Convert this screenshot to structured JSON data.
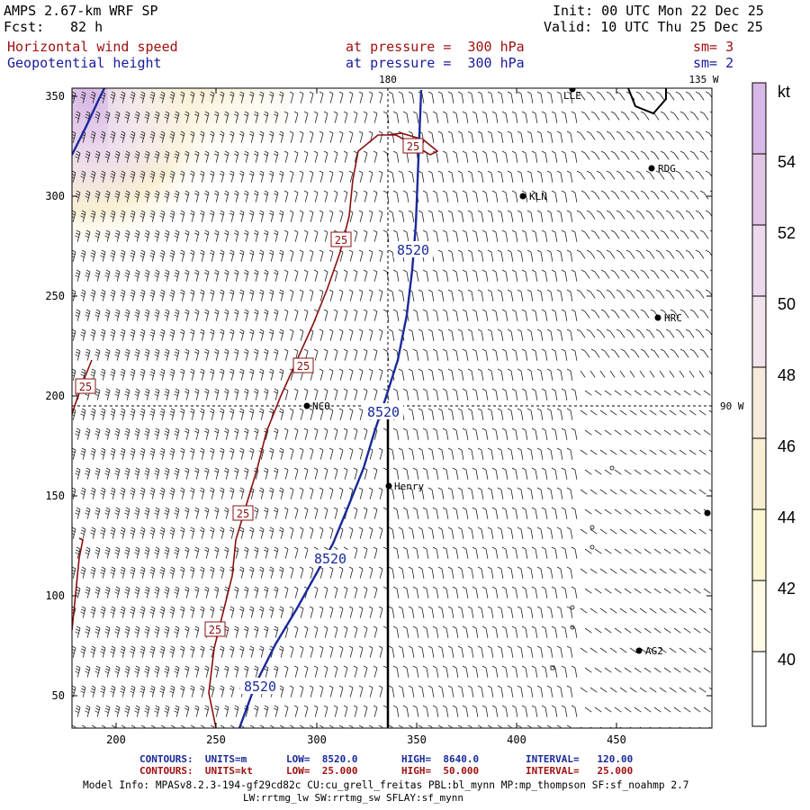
{
  "header": {
    "model": "AMPS 2.67-km WRF SP",
    "fcst_label": "Fcst:",
    "fcst_value": "82 h",
    "init": "Init: 00 UTC Mon 22 Dec 25",
    "valid": "Valid: 10 UTC Thu 25 Dec 25",
    "field1_name": "Horizontal wind speed",
    "field1_level": "at pressure =  300 hPa",
    "field1_sm": "sm= 3",
    "field2_name": "Geopotential height",
    "field2_level": "at pressure =  300 hPa",
    "field2_sm": "sm= 2"
  },
  "map": {
    "lon_top_1": "180",
    "lon_top_2": "135 W",
    "lon_right": "90 W",
    "stations": [
      {
        "name": "LLE",
        "label": "LLE"
      },
      {
        "name": "RDG",
        "label": "RDG"
      },
      {
        "name": "KLN",
        "label": "KLN"
      },
      {
        "name": "HRC",
        "label": "HRC"
      },
      {
        "name": "NCO",
        "label": "NCO"
      },
      {
        "name": "Henry",
        "label": "Henry"
      },
      {
        "name": "AG2",
        "label": "AG2"
      }
    ],
    "height_contour_label": "8520",
    "speed_contour_label": "25",
    "x_ticks": [
      "200",
      "250",
      "300",
      "350",
      "400",
      "450"
    ],
    "y_ticks": [
      "350",
      "300",
      "250",
      "200",
      "150",
      "100",
      "50"
    ]
  },
  "colorbar": {
    "unit": "kt",
    "labels": [
      "54",
      "52",
      "50",
      "48",
      "46",
      "44",
      "42",
      "40"
    ],
    "colors": {
      "c1": "#d7b8e6",
      "c2": "#e2c6e6",
      "c3": "#ecd9ec",
      "c4": "#f2e4ec",
      "c5": "#f6eadc",
      "c6": "#f9f0d4",
      "c7": "#fbf6d2",
      "c8": "#fdfbe6",
      "c9": "#ffffff"
    }
  },
  "footer": {
    "line1_label": "CONTOURS:  UNITS=m",
    "line1_low": "LOW=  8520.0",
    "line1_high": "HIGH=  8640.0",
    "line1_interval": "INTERVAL=   120.00",
    "line2_label": "CONTOURS:  UNITS=kt",
    "line2_low": "LOW=  25.000",
    "line2_high": "HIGH=  50.000",
    "line2_interval": "INTERVAL=   25.000",
    "model_info": "Model Info: MPASv8.2.3-194-gf29cd82c CU:cu_grell_freitas PBL:bl_mynn MP:mp_thompson SF:sf_noahmp 2.7",
    "model_info2": "LW:rrtmg_lw SW:rrtmg_sw SFLAY:sf_mynn"
  }
}
